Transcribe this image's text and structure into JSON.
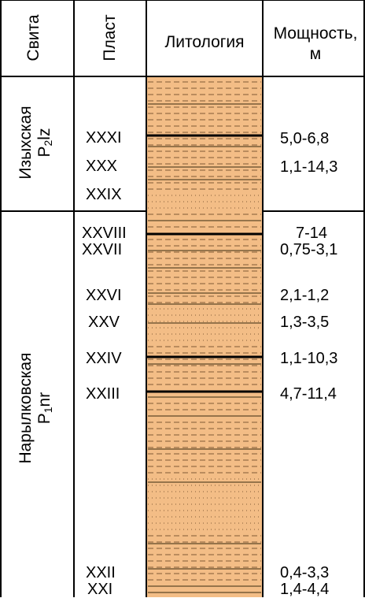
{
  "header": {
    "suite": "Свита",
    "layer": "Пласт",
    "lithology": "Литология",
    "thickness_line1": "Мощность,",
    "thickness_line2": "м"
  },
  "suites": [
    {
      "name": "Изыхская",
      "index_main": "P",
      "index_sub": "2",
      "index_rest": "lz"
    },
    {
      "name": "Нарылковская",
      "index_main": "P",
      "index_sub": "1",
      "index_rest": "nr"
    }
  ],
  "layers": [
    {
      "name": "XXXI",
      "thickness": "5,0-6,8"
    },
    {
      "name": "XXX",
      "thickness": "1,1-14,3"
    },
    {
      "name": "XXIX",
      "thickness": ""
    },
    {
      "name": "XXVIII",
      "thickness": "7-14"
    },
    {
      "name": "XXVII",
      "thickness": "0,75-3,1"
    },
    {
      "name": "XXVI",
      "thickness": "2,1-1,2"
    },
    {
      "name": "XXV",
      "thickness": "1,3-3,5"
    },
    {
      "name": "XXIV",
      "thickness": "1,1-10,3"
    },
    {
      "name": "XXIII",
      "thickness": "4,7-11,4"
    },
    {
      "name": "XXII",
      "thickness": "0,4-3,3"
    },
    {
      "name": "XXI",
      "thickness": "1,4-4,4"
    }
  ],
  "colors": {
    "rock_fill": "#f3bd86",
    "line": "#000000",
    "background": "#ffffff"
  }
}
